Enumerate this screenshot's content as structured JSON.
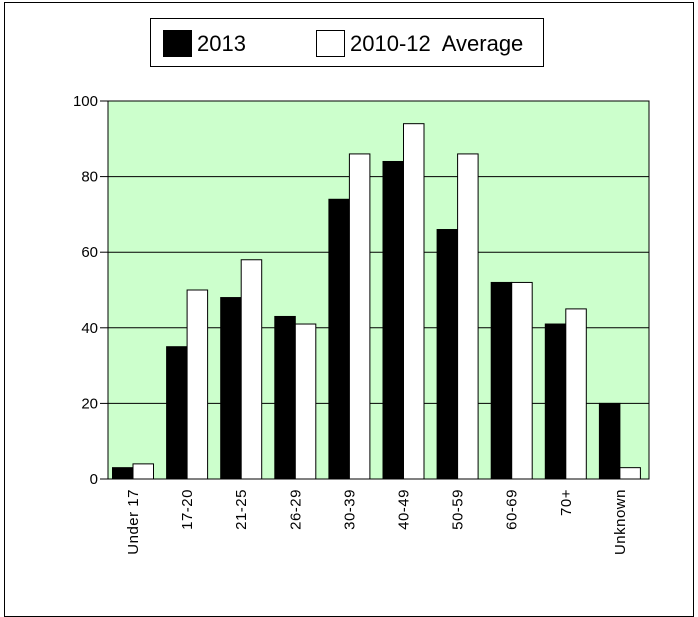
{
  "chart_data": {
    "type": "bar",
    "categories": [
      "Under 17",
      "17-20",
      "21-25",
      "26-29",
      "30-39",
      "40-49",
      "50-59",
      "60-69",
      "70+",
      "Unknown"
    ],
    "series": [
      {
        "name": "2013",
        "values": [
          3,
          35,
          48,
          43,
          74,
          84,
          66,
          52,
          41,
          20
        ],
        "color": "#000000"
      },
      {
        "name": "2010-12  Average",
        "values": [
          4,
          50,
          58,
          41,
          86,
          94,
          86,
          52,
          45,
          3
        ],
        "color": "#ffffff"
      }
    ],
    "yticks": [
      0,
      20,
      40,
      60,
      80,
      100
    ],
    "ylim": [
      0,
      100
    ],
    "grid": true,
    "legend_position": "top",
    "plot_background": "#ccffcc",
    "title": "",
    "xlabel": "",
    "ylabel": ""
  }
}
